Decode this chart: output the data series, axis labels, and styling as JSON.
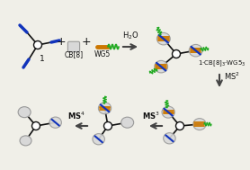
{
  "bg_color": "#f0efe8",
  "cb8_color": "#d8d8d8",
  "cb8_edge": "#999999",
  "wg5_color": "#cc7700",
  "blue_color": "#1133bb",
  "green_color": "#22aa22",
  "black_color": "#111111",
  "arrow_color": "#444444",
  "label_1": "1",
  "label_cb8": "CB[8]",
  "label_wg5": "WG5",
  "label_h2o": "H$_2$O",
  "label_ms2": "MS$^2$",
  "label_ms3": "MS$^3$",
  "label_ms4": "MS$^4$",
  "label_product": "1·CB[8]$_3$·WG5$_3$",
  "figw": 2.78,
  "figh": 1.89,
  "dpi": 100
}
